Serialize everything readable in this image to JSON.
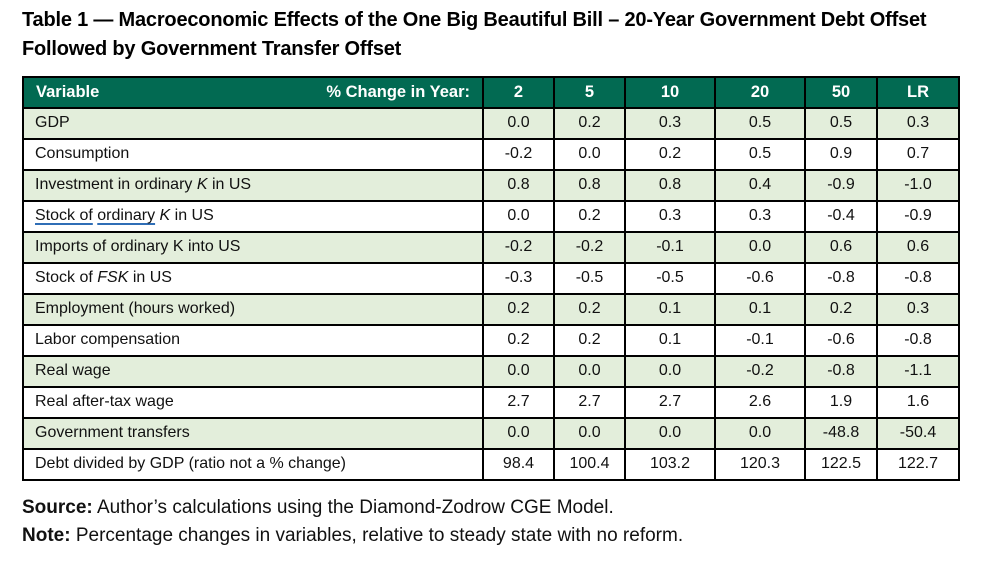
{
  "title": "Table 1 — Macroeconomic Effects of the One Big Beautiful Bill – 20-Year Government Debt Offset Followed by Government Transfer Offset",
  "table": {
    "header": {
      "variable_label": "Variable",
      "change_label": "% Change in Year:",
      "year_columns": [
        "2",
        "5",
        "10",
        "20",
        "50",
        "LR"
      ]
    },
    "rows": [
      {
        "label_parts": [
          {
            "text": "GDP"
          }
        ],
        "values": [
          "0.0",
          "0.2",
          "0.3",
          "0.5",
          "0.5",
          "0.3"
        ]
      },
      {
        "label_parts": [
          {
            "text": "Consumption"
          }
        ],
        "values": [
          "-0.2",
          "0.0",
          "0.2",
          "0.5",
          "0.9",
          "0.7"
        ]
      },
      {
        "label_parts": [
          {
            "text": "Investment in ordinary "
          },
          {
            "text": "K",
            "italic": true
          },
          {
            "text": " in US"
          }
        ],
        "values": [
          "0.8",
          "0.8",
          "0.8",
          "0.4",
          "-0.9",
          "-1.0"
        ]
      },
      {
        "label_parts": [
          {
            "text": "Stock of",
            "underline": true
          },
          {
            "text": " "
          },
          {
            "text": "ordinary",
            "underline": true
          },
          {
            "text": " "
          },
          {
            "text": "K",
            "italic": true
          },
          {
            "text": " in US"
          }
        ],
        "values": [
          "0.0",
          "0.2",
          "0.3",
          "0.3",
          "-0.4",
          "-0.9"
        ]
      },
      {
        "label_parts": [
          {
            "text": "Imports of ordinary K into US"
          }
        ],
        "values": [
          "-0.2",
          "-0.2",
          "-0.1",
          "0.0",
          "0.6",
          "0.6"
        ]
      },
      {
        "label_parts": [
          {
            "text": "Stock of "
          },
          {
            "text": "FSK",
            "italic": true
          },
          {
            "text": " in US"
          }
        ],
        "values": [
          "-0.3",
          "-0.5",
          "-0.5",
          "-0.6",
          "-0.8",
          "-0.8"
        ]
      },
      {
        "label_parts": [
          {
            "text": "Employment (hours worked)"
          }
        ],
        "values": [
          "0.2",
          "0.2",
          "0.1",
          "0.1",
          "0.2",
          "0.3"
        ]
      },
      {
        "label_parts": [
          {
            "text": "Labor compensation"
          }
        ],
        "values": [
          "0.2",
          "0.2",
          "0.1",
          "-0.1",
          "-0.6",
          "-0.8"
        ]
      },
      {
        "label_parts": [
          {
            "text": "Real wage"
          }
        ],
        "values": [
          "0.0",
          "0.0",
          "0.0",
          "-0.2",
          "-0.8",
          "-1.1"
        ]
      },
      {
        "label_parts": [
          {
            "text": "Real after-tax wage"
          }
        ],
        "values": [
          "2.7",
          "2.7",
          "2.7",
          "2.6",
          "1.9",
          "1.6"
        ]
      },
      {
        "label_parts": [
          {
            "text": "Government transfers"
          }
        ],
        "values": [
          "0.0",
          "0.0",
          "0.0",
          "0.0",
          "-48.8",
          "-50.4"
        ]
      },
      {
        "label_parts": [
          {
            "text": "Debt divided by GDP (ratio not a % change)"
          }
        ],
        "values": [
          "98.4",
          "100.4",
          "103.2",
          "120.3",
          "122.5",
          "122.7"
        ]
      }
    ]
  },
  "footer": {
    "source_label": "Source:",
    "source_text": " Author’s calculations using the Diamond-Zodrow CGE Model.",
    "note_label": "Note:",
    "note_text": " Percentage changes in variables, relative to steady state with no reform."
  },
  "colors": {
    "header_bg": "#026A52",
    "row_alt_bg": "#E3EEDB",
    "border_color": "#000000",
    "underline_blue": "#2F6EB6"
  }
}
